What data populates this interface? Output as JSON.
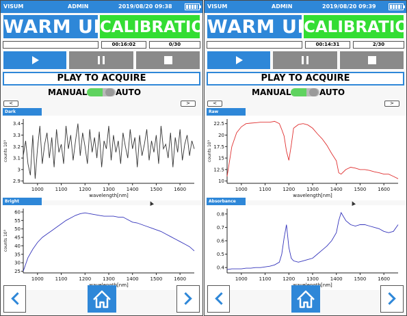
{
  "screens": [
    {
      "status": {
        "app": "VISUM",
        "user": "ADMIN",
        "datetime": "2019/08/20 09:38"
      },
      "phase_active": "WARM UP",
      "phase_next": "CALIBRATION",
      "progress_text": "",
      "timer": "00:16:02",
      "count": "0/30",
      "acquire_label": "PLAY TO ACQUIRE",
      "mode_manual": "MANUAL",
      "mode_auto": "AUTO",
      "prev_small": "<",
      "next_small": ">",
      "chart_top": {
        "tab": "Dark",
        "ylabel": "counts 10³",
        "xlabel": "wavelength[nm]",
        "yticks": [
          "3.4",
          "3.3",
          "3.2",
          "3.1",
          "3",
          "2.9"
        ],
        "xticks": [
          "1000",
          "1100",
          "1200",
          "1300",
          "1400",
          "1500",
          "1600"
        ]
      },
      "chart_bottom": {
        "tab": "Bright",
        "ylabel": "counts 10³",
        "xlabel": "wavelength[nm]",
        "yticks": [
          "60",
          "55",
          "50",
          "45",
          "40",
          "35",
          "30",
          "25"
        ],
        "xticks": [
          "1000",
          "1100",
          "1200",
          "1300",
          "1400",
          "1500",
          "1600"
        ]
      }
    },
    {
      "status": {
        "app": "VISUM",
        "user": "ADMIN",
        "datetime": "2019/08/20 09:39"
      },
      "phase_active": "WARM UP",
      "phase_next": "CALIBRATION",
      "progress_text": "",
      "timer": "00:14:31",
      "count": "2/30",
      "acquire_label": "PLAY TO ACQUIRE",
      "mode_manual": "MANUAL",
      "mode_auto": "AUTO",
      "prev_small": "<",
      "next_small": ">",
      "chart_top": {
        "tab": "Raw",
        "ylabel": "counts 10³",
        "xlabel": "wavelength[nm]",
        "yticks": [
          "22.5",
          "20",
          "17.5",
          "15",
          "12.5",
          "10"
        ],
        "xticks": [
          "1000",
          "1100",
          "1200",
          "1300",
          "1400",
          "1500",
          "1600"
        ]
      },
      "chart_bottom": {
        "tab": "Absorbance",
        "ylabel": "",
        "xlabel": "wavelength[nm]",
        "yticks": [
          "0.8",
          "0.7",
          "0.6",
          "0.5",
          "0.4"
        ],
        "xticks": [
          "1000",
          "1100",
          "1200",
          "1300",
          "1400",
          "1500",
          "1600"
        ]
      }
    }
  ],
  "icons": {
    "play": "play-icon",
    "pause": "pause-icon",
    "stop": "stop-icon",
    "home": "home-icon",
    "back": "chevron-left-icon",
    "forward": "chevron-right-icon"
  },
  "colors": {
    "accent": "#2e87d8",
    "active_phase": "#33dd33",
    "pause": "#8a8a8a",
    "dark_series": "#333333",
    "bright_series": "#3333bb",
    "raw_series": "#e03030",
    "absorbance_series": "#3333bb"
  },
  "chart_data": [
    {
      "type": "line",
      "tab": "Dark",
      "xlabel": "wavelength[nm]",
      "ylabel": "counts 10³",
      "xlim": [
        940,
        1660
      ],
      "ylim": [
        2.88,
        3.44
      ],
      "series": [
        {
          "values_x": [
            940,
            950,
            960,
            970,
            980,
            990,
            1000,
            1010,
            1020,
            1030,
            1040,
            1050,
            1060,
            1070,
            1080,
            1090,
            1100,
            1110,
            1120,
            1130,
            1140,
            1150,
            1160,
            1170,
            1180,
            1190,
            1200,
            1210,
            1220,
            1230,
            1240,
            1250,
            1260,
            1270,
            1280,
            1290,
            1300,
            1310,
            1320,
            1330,
            1340,
            1350,
            1360,
            1370,
            1380,
            1390,
            1400,
            1410,
            1420,
            1430,
            1440,
            1450,
            1460,
            1470,
            1480,
            1490,
            1500,
            1510,
            1520,
            1530,
            1540,
            1550,
            1560,
            1570,
            1580,
            1590,
            1600,
            1610,
            1620,
            1630,
            1640,
            1650,
            1660
          ],
          "values_y": [
            3.12,
            3.25,
            3.05,
            2.95,
            3.3,
            2.92,
            3.18,
            3.38,
            3.05,
            3.22,
            3.32,
            3.1,
            3.28,
            3.02,
            3.35,
            3.15,
            3.22,
            3.05,
            3.38,
            3.18,
            3.3,
            3.08,
            3.25,
            3.4,
            3.12,
            3.32,
            3.2,
            3.05,
            3.35,
            3.15,
            3.28,
            3.1,
            3.33,
            3.02,
            3.25,
            3.18,
            3.38,
            3.08,
            3.3,
            3.15,
            3.25,
            3.05,
            3.32,
            3.2,
            3.1,
            3.35,
            3.18,
            3.28,
            3.02,
            3.3,
            3.12,
            3.22,
            3.35,
            3.08,
            3.25,
            3.15,
            3.3,
            3.05,
            3.38,
            3.18,
            3.22,
            3.1,
            3.32,
            3.02,
            3.28,
            3.15,
            3.35,
            3.08,
            3.22,
            3.3,
            3.12,
            3.25,
            3.18
          ]
        }
      ]
    },
    {
      "type": "line",
      "tab": "Bright",
      "xlabel": "wavelength[nm]",
      "ylabel": "counts 10³",
      "xlim": [
        940,
        1660
      ],
      "ylim": [
        24,
        62
      ],
      "series": [
        {
          "values_x": [
            940,
            960,
            980,
            1000,
            1020,
            1040,
            1060,
            1080,
            1100,
            1120,
            1140,
            1160,
            1180,
            1200,
            1220,
            1240,
            1260,
            1280,
            1300,
            1320,
            1340,
            1360,
            1380,
            1400,
            1420,
            1440,
            1460,
            1480,
            1500,
            1520,
            1540,
            1560,
            1580,
            1600,
            1620,
            1640,
            1660
          ],
          "values_y": [
            25,
            33,
            38,
            42,
            45,
            47,
            49,
            51,
            53,
            55,
            56.5,
            58,
            59,
            59.5,
            59,
            58.5,
            58,
            57.5,
            57.5,
            57.5,
            57,
            57,
            55.5,
            54,
            53.5,
            52.5,
            51.5,
            50.5,
            49.5,
            48.5,
            47,
            45.5,
            44,
            42.5,
            41,
            39.5,
            37
          ]
        }
      ]
    },
    {
      "type": "line",
      "tab": "Raw",
      "xlabel": "wavelength[nm]",
      "ylabel": "counts 10³",
      "xlim": [
        940,
        1660
      ],
      "ylim": [
        9.5,
        23.5
      ],
      "series": [
        {
          "values_x": [
            940,
            960,
            980,
            1000,
            1020,
            1040,
            1060,
            1080,
            1100,
            1120,
            1140,
            1160,
            1170,
            1180,
            1190,
            1200,
            1210,
            1220,
            1240,
            1260,
            1280,
            1300,
            1320,
            1340,
            1360,
            1380,
            1400,
            1410,
            1420,
            1440,
            1460,
            1480,
            1500,
            1520,
            1540,
            1560,
            1580,
            1600,
            1620,
            1640,
            1660
          ],
          "values_y": [
            11,
            17.5,
            20.5,
            21.8,
            22.5,
            22.6,
            22.7,
            22.8,
            22.8,
            22.8,
            23,
            22.5,
            21.2,
            19.8,
            16.5,
            14.5,
            17.8,
            21.5,
            22.3,
            22.5,
            22.2,
            21.5,
            20.3,
            19.2,
            17.8,
            16,
            14.4,
            11.8,
            11.5,
            12.5,
            13,
            12.8,
            12.5,
            12.5,
            12.3,
            12,
            11.8,
            11.5,
            11.5,
            11,
            10.5
          ]
        }
      ]
    },
    {
      "type": "line",
      "tab": "Absorbance",
      "xlabel": "wavelength[nm]",
      "ylabel": "",
      "xlim": [
        940,
        1660
      ],
      "ylim": [
        0.36,
        0.84
      ],
      "series": [
        {
          "values_x": [
            940,
            960,
            980,
            1000,
            1020,
            1040,
            1060,
            1080,
            1100,
            1120,
            1140,
            1160,
            1170,
            1180,
            1190,
            1200,
            1210,
            1220,
            1240,
            1260,
            1280,
            1300,
            1320,
            1340,
            1360,
            1380,
            1400,
            1410,
            1420,
            1440,
            1460,
            1480,
            1500,
            1520,
            1540,
            1560,
            1580,
            1600,
            1620,
            1640,
            1660
          ],
          "values_y": [
            0.385,
            0.39,
            0.39,
            0.39,
            0.395,
            0.395,
            0.4,
            0.4,
            0.405,
            0.41,
            0.42,
            0.44,
            0.5,
            0.62,
            0.72,
            0.55,
            0.47,
            0.45,
            0.44,
            0.45,
            0.46,
            0.47,
            0.5,
            0.53,
            0.56,
            0.6,
            0.66,
            0.75,
            0.81,
            0.75,
            0.72,
            0.71,
            0.72,
            0.72,
            0.71,
            0.7,
            0.69,
            0.67,
            0.66,
            0.67,
            0.72
          ]
        }
      ]
    }
  ]
}
